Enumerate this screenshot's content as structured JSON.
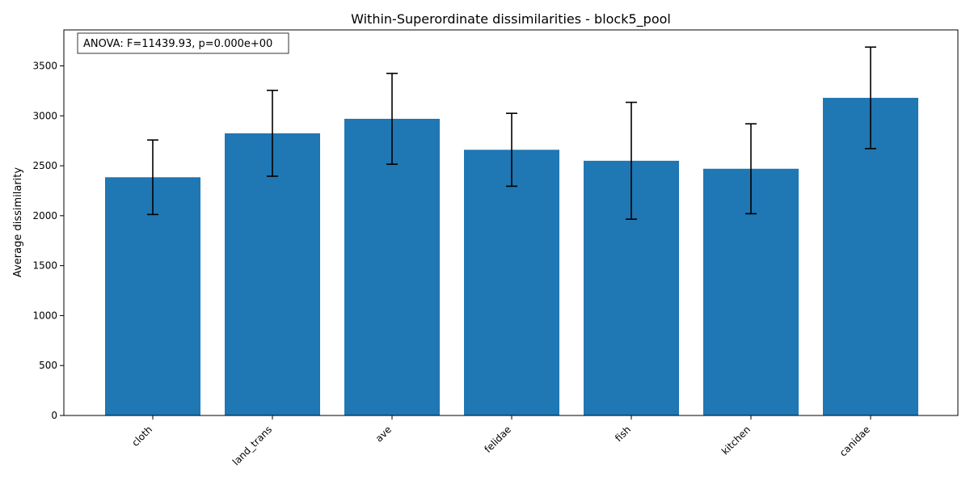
{
  "chart_data": {
    "type": "bar",
    "title": "Within-Superordinate dissimilarities - block5_pool",
    "xlabel": "",
    "ylabel": "Average dissimilarity",
    "categories": [
      "cloth",
      "land_trans",
      "ave",
      "felidae",
      "fish",
      "kitchen",
      "canidae"
    ],
    "values": [
      2385,
      2825,
      2970,
      2660,
      2550,
      2470,
      3180
    ],
    "errors": [
      373,
      430,
      455,
      365,
      585,
      450,
      508
    ],
    "ylim": [
      0,
      3860
    ],
    "yticks": [
      0,
      500,
      1000,
      1500,
      2000,
      2500,
      3000,
      3500
    ],
    "annotation": "ANOVA: F=11439.93, p=0.000e+00",
    "grid": false,
    "bar_color": "#1f77b4",
    "error_color": "#000000"
  }
}
